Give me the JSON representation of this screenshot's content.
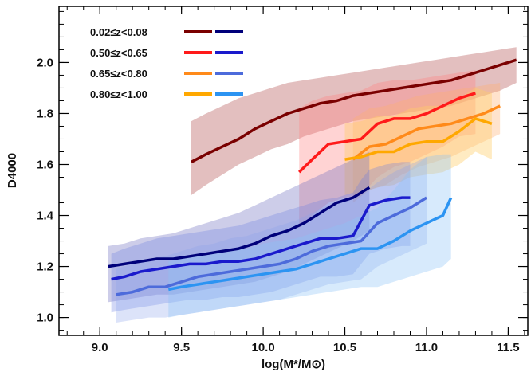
{
  "chart_data": {
    "type": "line",
    "title": "",
    "xlabel": "log(M*/M⊙)",
    "ylabel": "D4000",
    "xlim": [
      8.75,
      11.62
    ],
    "ylim": [
      0.93,
      2.22
    ],
    "x_ticks": [
      "9.0",
      "9.5",
      "10.0",
      "10.5",
      "11.0",
      "11.5"
    ],
    "y_ticks": [
      "1.0",
      "1.2",
      "1.4",
      "1.6",
      "1.8",
      "2.0"
    ],
    "grid": false,
    "legend_position": "top-left",
    "legend": [
      {
        "label": "0.02≤z<0.08",
        "red_color": "#7a0000",
        "blue_color": "#00007a"
      },
      {
        "label": "0.50≤z<0.65",
        "red_color": "#ff1a1a",
        "blue_color": "#1a1acc"
      },
      {
        "label": "0.65≤z<0.80",
        "red_color": "#ff8a1a",
        "blue_color": "#4d6bdb"
      },
      {
        "label": "0.80≤z<1.00",
        "red_color": "#ffa800",
        "blue_color": "#2c94f2"
      }
    ],
    "series": [
      {
        "name": "0.02≤z<0.08 (red)",
        "color": "#7a0000",
        "band_color": "#c07070",
        "band_opacity": 0.45,
        "x": [
          9.56,
          9.65,
          9.75,
          9.85,
          9.95,
          10.05,
          10.15,
          10.25,
          10.35,
          10.45,
          10.55,
          10.65,
          10.75,
          10.85,
          10.95,
          11.05,
          11.15,
          11.25,
          11.35,
          11.45,
          11.55
        ],
        "y": [
          1.61,
          1.64,
          1.67,
          1.7,
          1.74,
          1.77,
          1.8,
          1.82,
          1.84,
          1.85,
          1.87,
          1.88,
          1.89,
          1.9,
          1.91,
          1.92,
          1.93,
          1.95,
          1.97,
          1.99,
          2.01
        ],
        "y_low": [
          1.48,
          1.52,
          1.56,
          1.6,
          1.63,
          1.66,
          1.68,
          1.71,
          1.73,
          1.75,
          1.77,
          1.78,
          1.79,
          1.8,
          1.81,
          1.82,
          1.83,
          1.85,
          1.87,
          1.89,
          1.92
        ],
        "y_high": [
          1.77,
          1.8,
          1.83,
          1.86,
          1.88,
          1.9,
          1.92,
          1.93,
          1.94,
          1.95,
          1.96,
          1.97,
          1.98,
          1.99,
          2.0,
          2.01,
          2.02,
          2.03,
          2.04,
          2.05,
          2.06
        ]
      },
      {
        "name": "0.50≤z<0.65 (red)",
        "color": "#ff1a1a",
        "band_color": "#ff8080",
        "band_opacity": 0.35,
        "x": [
          10.22,
          10.3,
          10.4,
          10.5,
          10.6,
          10.7,
          10.8,
          10.9,
          11.0,
          11.1,
          11.2,
          11.3
        ],
        "y": [
          1.57,
          1.62,
          1.68,
          1.69,
          1.7,
          1.76,
          1.78,
          1.78,
          1.8,
          1.83,
          1.86,
          1.88
        ],
        "y_low": [
          1.35,
          1.4,
          1.45,
          1.47,
          1.48,
          1.55,
          1.59,
          1.61,
          1.64,
          1.67,
          1.71,
          1.72
        ],
        "y_high": [
          1.82,
          1.85,
          1.87,
          1.88,
          1.89,
          1.92,
          1.93,
          1.93,
          1.94,
          1.95,
          1.96,
          1.97
        ]
      },
      {
        "name": "0.65≤z<0.80 (red)",
        "color": "#ff8a1a",
        "band_color": "#ffb070",
        "band_opacity": 0.35,
        "x": [
          10.55,
          10.65,
          10.75,
          10.85,
          10.95,
          11.05,
          11.15,
          11.25,
          11.35,
          11.45
        ],
        "y": [
          1.62,
          1.67,
          1.68,
          1.71,
          1.74,
          1.75,
          1.76,
          1.78,
          1.8,
          1.83
        ],
        "y_low": [
          1.45,
          1.5,
          1.52,
          1.56,
          1.59,
          1.61,
          1.63,
          1.66,
          1.69,
          1.72
        ],
        "y_high": [
          1.78,
          1.82,
          1.83,
          1.85,
          1.87,
          1.88,
          1.89,
          1.9,
          1.91,
          1.92
        ]
      },
      {
        "name": "0.80≤z<1.00 (red)",
        "color": "#ffa800",
        "band_color": "#ffcc66",
        "band_opacity": 0.4,
        "x": [
          10.5,
          10.6,
          10.7,
          10.8,
          10.9,
          11.0,
          11.1,
          11.2,
          11.3,
          11.4
        ],
        "y": [
          1.62,
          1.63,
          1.65,
          1.65,
          1.68,
          1.69,
          1.69,
          1.73,
          1.78,
          1.76
        ],
        "y_low": [
          1.48,
          1.49,
          1.51,
          1.52,
          1.55,
          1.56,
          1.57,
          1.6,
          1.65,
          1.62
        ],
        "y_high": [
          1.76,
          1.77,
          1.79,
          1.79,
          1.82,
          1.83,
          1.83,
          1.86,
          1.9,
          1.88
        ]
      },
      {
        "name": "0.02≤z<0.08 (blue)",
        "color": "#00007a",
        "band_color": "#7070c0",
        "band_opacity": 0.35,
        "x": [
          9.05,
          9.15,
          9.25,
          9.35,
          9.45,
          9.55,
          9.65,
          9.75,
          9.85,
          9.95,
          10.05,
          10.15,
          10.25,
          10.35,
          10.45,
          10.55,
          10.65
        ],
        "y": [
          1.2,
          1.21,
          1.22,
          1.23,
          1.23,
          1.24,
          1.25,
          1.26,
          1.27,
          1.29,
          1.32,
          1.34,
          1.37,
          1.41,
          1.45,
          1.47,
          1.51
        ],
        "y_low": [
          1.06,
          1.07,
          1.08,
          1.09,
          1.09,
          1.1,
          1.11,
          1.12,
          1.13,
          1.14,
          1.16,
          1.18,
          1.21,
          1.24,
          1.27,
          1.3,
          1.34
        ],
        "y_high": [
          1.28,
          1.29,
          1.31,
          1.32,
          1.33,
          1.35,
          1.37,
          1.39,
          1.41,
          1.44,
          1.47,
          1.5,
          1.53,
          1.56,
          1.59,
          1.62,
          1.65
        ]
      },
      {
        "name": "0.50≤z<0.65 (blue)",
        "color": "#1a1acc",
        "band_color": "#6b7ee0",
        "band_opacity": 0.3,
        "x": [
          9.07,
          9.15,
          9.25,
          9.35,
          9.45,
          9.55,
          9.65,
          9.75,
          9.85,
          9.95,
          10.05,
          10.15,
          10.25,
          10.35,
          10.45,
          10.55,
          10.6,
          10.65,
          10.75,
          10.85,
          10.9
        ],
        "y": [
          1.15,
          1.16,
          1.18,
          1.19,
          1.2,
          1.21,
          1.21,
          1.22,
          1.22,
          1.23,
          1.25,
          1.27,
          1.29,
          1.31,
          1.31,
          1.32,
          1.38,
          1.44,
          1.46,
          1.47,
          1.47
        ],
        "y_low": [
          1.02,
          1.03,
          1.04,
          1.05,
          1.06,
          1.07,
          1.07,
          1.08,
          1.08,
          1.09,
          1.1,
          1.12,
          1.14,
          1.16,
          1.16,
          1.17,
          1.21,
          1.25,
          1.27,
          1.28,
          1.28
        ],
        "y_high": [
          1.25,
          1.27,
          1.29,
          1.31,
          1.32,
          1.33,
          1.34,
          1.35,
          1.36,
          1.38,
          1.4,
          1.42,
          1.44,
          1.46,
          1.47,
          1.49,
          1.54,
          1.58,
          1.6,
          1.61,
          1.61
        ]
      },
      {
        "name": "0.65≤z<0.80 (blue)",
        "color": "#4d6bdb",
        "band_color": "#8aa2ec",
        "band_opacity": 0.3,
        "x": [
          9.1,
          9.2,
          9.3,
          9.4,
          9.5,
          9.6,
          9.7,
          9.8,
          9.9,
          10.0,
          10.1,
          10.2,
          10.3,
          10.4,
          10.5,
          10.6,
          10.7,
          10.8,
          10.9,
          11.0
        ],
        "y": [
          1.09,
          1.1,
          1.12,
          1.12,
          1.14,
          1.16,
          1.17,
          1.18,
          1.19,
          1.2,
          1.21,
          1.23,
          1.26,
          1.28,
          1.29,
          1.3,
          1.37,
          1.4,
          1.43,
          1.47
        ],
        "y_low": [
          0.98,
          0.99,
          1.0,
          1.0,
          1.01,
          1.02,
          1.03,
          1.04,
          1.05,
          1.06,
          1.07,
          1.09,
          1.11,
          1.13,
          1.14,
          1.15,
          1.2,
          1.23,
          1.26,
          1.29
        ],
        "y_high": [
          1.19,
          1.21,
          1.23,
          1.24,
          1.26,
          1.28,
          1.29,
          1.31,
          1.32,
          1.34,
          1.36,
          1.38,
          1.41,
          1.44,
          1.46,
          1.48,
          1.53,
          1.57,
          1.6,
          1.63
        ]
      },
      {
        "name": "0.80≤z<1.00 (blue)",
        "color": "#2c94f2",
        "band_color": "#8cc4f6",
        "band_opacity": 0.35,
        "x": [
          9.42,
          9.5,
          9.6,
          9.7,
          9.8,
          9.9,
          10.0,
          10.1,
          10.2,
          10.3,
          10.4,
          10.5,
          10.6,
          10.7,
          10.8,
          10.9,
          11.0,
          11.1,
          11.15
        ],
        "y": [
          1.11,
          1.12,
          1.13,
          1.14,
          1.15,
          1.16,
          1.17,
          1.18,
          1.19,
          1.21,
          1.23,
          1.25,
          1.27,
          1.27,
          1.3,
          1.34,
          1.37,
          1.4,
          1.47
        ],
        "y_low": [
          1.0,
          1.01,
          1.02,
          1.03,
          1.04,
          1.05,
          1.06,
          1.07,
          1.08,
          1.09,
          1.1,
          1.11,
          1.12,
          1.12,
          1.14,
          1.16,
          1.18,
          1.2,
          1.23
        ],
        "y_high": [
          1.22,
          1.23,
          1.24,
          1.25,
          1.26,
          1.27,
          1.29,
          1.3,
          1.31,
          1.33,
          1.35,
          1.37,
          1.4,
          1.43,
          1.5,
          1.58,
          1.63,
          1.64,
          1.64
        ]
      }
    ]
  }
}
